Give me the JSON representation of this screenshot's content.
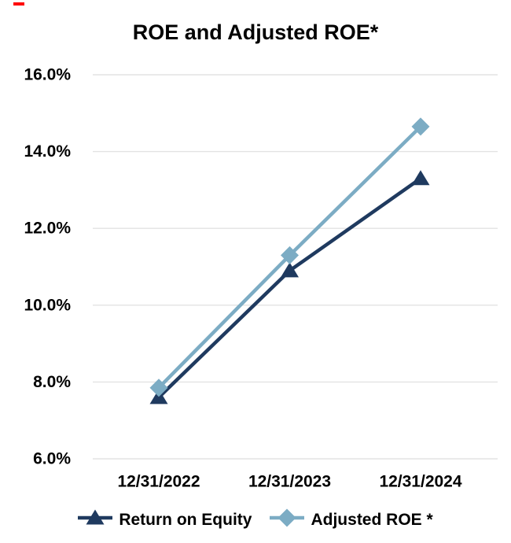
{
  "colors": {
    "navy": "#1F3A5F",
    "light_blue": "#7CACC4",
    "gridline": "#E3E3E3",
    "text": "#000000",
    "background": "#FFFFFF",
    "corner_mark": "#FF0000"
  },
  "chart_data": {
    "type": "line",
    "title": "ROE and Adjusted ROE*",
    "categories": [
      "12/31/2022",
      "12/31/2023",
      "12/31/2024"
    ],
    "series": [
      {
        "name": "Return on Equity",
        "marker": "triangle",
        "color": "#1F3A5F",
        "values": [
          7.6,
          10.9,
          13.3
        ]
      },
      {
        "name": "Adjusted ROE *",
        "marker": "diamond",
        "color": "#7CACC4",
        "values": [
          7.85,
          11.3,
          14.65
        ]
      }
    ],
    "xlabel": "",
    "ylabel": "",
    "ylim": [
      6,
      16
    ],
    "ytick_step": 2,
    "ytick_labels": [
      "6.0%",
      "8.0%",
      "10.0%",
      "12.0%",
      "14.0%",
      "16.0%"
    ],
    "grid": "horizontal-only",
    "legend_position": "bottom"
  },
  "legend": {
    "items": [
      {
        "label": "Return on Equity"
      },
      {
        "label": "Adjusted ROE *"
      }
    ]
  }
}
